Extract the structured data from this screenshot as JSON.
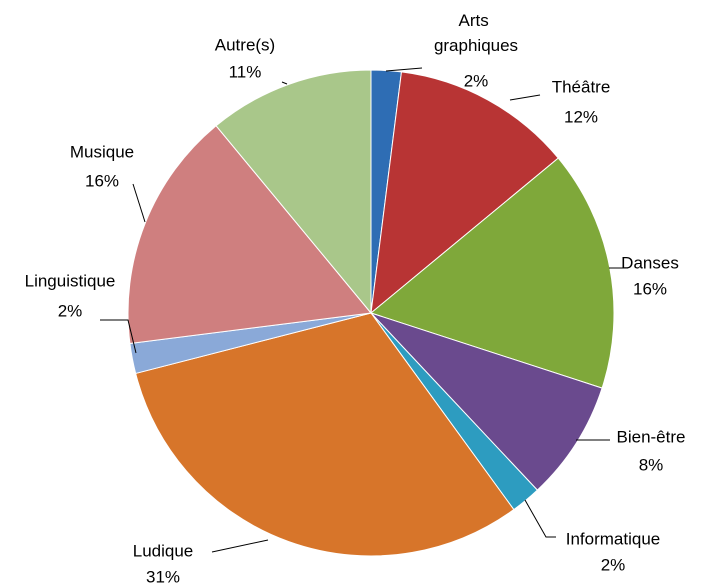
{
  "chart_data": {
    "type": "pie",
    "categories": [
      "Arts graphiques",
      "Théâtre",
      "Danses",
      "Bien-être",
      "Informatique",
      "Ludique",
      "Linguistique",
      "Musique",
      "Autre(s)"
    ],
    "values": [
      2,
      12,
      16,
      8,
      2,
      31,
      2,
      16,
      11
    ],
    "value_labels": [
      "2%",
      "12%",
      "16%",
      "8%",
      "2%",
      "31%",
      "2%",
      "16%",
      "11%"
    ],
    "colors": [
      "#2e6db4",
      "#b83434",
      "#7fa83a",
      "#6a4a8e",
      "#2d9cc0",
      "#d7752a",
      "#8aa9d8",
      "#cf7f7f",
      "#a9c78a"
    ]
  }
}
